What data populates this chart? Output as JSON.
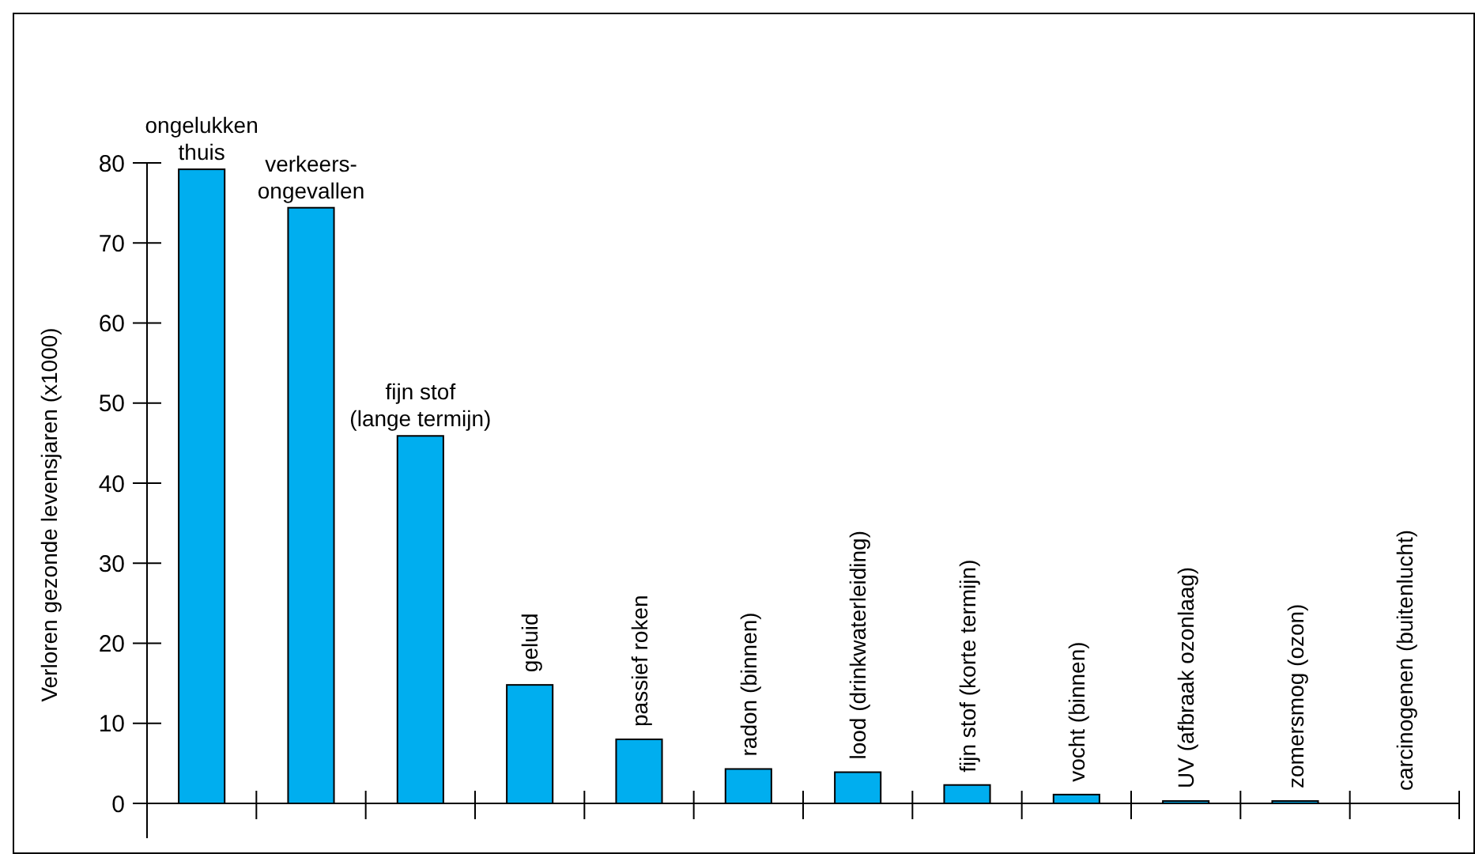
{
  "chart_data": {
    "type": "bar",
    "ylabel": "Verloren gezonde levensjaren (x1000)",
    "categories": [
      "ongelukken\nthuis",
      "verkeers-\nongevallen",
      "fijn stof\n(lange termijn)",
      "geluid",
      "passief roken",
      "radon (binnen)",
      "lood (drinkwaterleiding)",
      "fijn stof (korte termijn)",
      "vocht (binnen)",
      "UV (afbraak ozonlaag)",
      "zomersmog (ozon)",
      "carcinogenen (buitenlucht)"
    ],
    "values": [
      79.2,
      74.4,
      45.9,
      14.8,
      8.0,
      4.3,
      3.9,
      2.3,
      1.1,
      0.3,
      0.3,
      0
    ],
    "color": "#00aeef",
    "ylim": [
      0,
      80
    ],
    "yticks": [
      0,
      10,
      20,
      30,
      40,
      50,
      60,
      70,
      80
    ],
    "grid": false
  }
}
